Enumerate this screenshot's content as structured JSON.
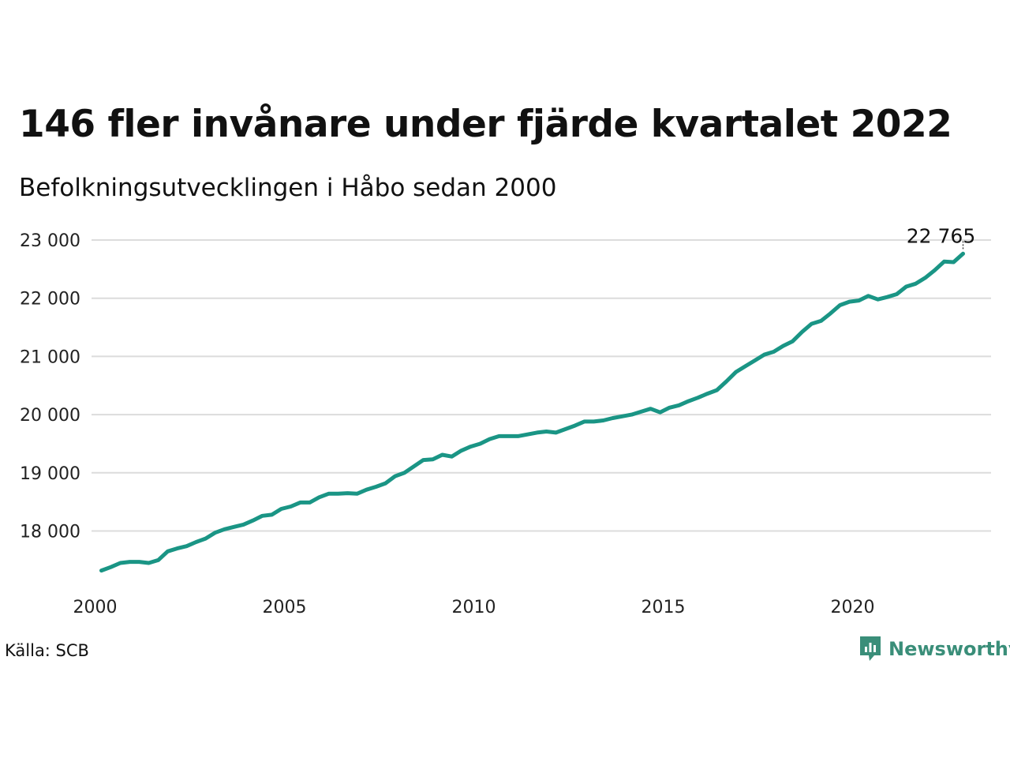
{
  "title": "146 fler invånare under fjärde kvartalet 2022",
  "subtitle": "Befolkningsutvecklingen i Håbo sedan 2000",
  "source": "Källa: SCB",
  "brand": {
    "name": "Newsworthy",
    "icon": "newsworthy-logo-icon",
    "color": "#3a8e79"
  },
  "colors": {
    "line": "#1a9585",
    "grid": "#dcdcdc"
  },
  "chart_data": {
    "type": "line",
    "title": "146 fler invånare under fjärde kvartalet 2022",
    "subtitle": "Befolkningsutvecklingen i Håbo sedan 2000",
    "xlabel": "",
    "ylabel": "",
    "xlim": [
      2000,
      2023
    ],
    "ylim": [
      17100,
      23200
    ],
    "x_ticks": [
      2000,
      2005,
      2010,
      2015,
      2020
    ],
    "y_ticks": [
      18000,
      19000,
      20000,
      21000,
      22000,
      23000
    ],
    "y_tick_labels": [
      "18 000",
      "19 000",
      "20 000",
      "21 000",
      "22 000",
      "23 000"
    ],
    "grid": true,
    "end_label": "22 765",
    "series": [
      {
        "values": [
          [
            2000.0,
            17320
          ],
          [
            2000.25,
            17380
          ],
          [
            2000.5,
            17450
          ],
          [
            2000.75,
            17470
          ],
          [
            2001.0,
            17470
          ],
          [
            2001.25,
            17450
          ],
          [
            2001.5,
            17500
          ],
          [
            2001.75,
            17650
          ],
          [
            2002.0,
            17700
          ],
          [
            2002.25,
            17740
          ],
          [
            2002.5,
            17810
          ],
          [
            2002.75,
            17870
          ],
          [
            2003.0,
            17970
          ],
          [
            2003.25,
            18030
          ],
          [
            2003.5,
            18070
          ],
          [
            2003.75,
            18110
          ],
          [
            2004.0,
            18180
          ],
          [
            2004.25,
            18260
          ],
          [
            2004.5,
            18280
          ],
          [
            2004.75,
            18380
          ],
          [
            2005.0,
            18420
          ],
          [
            2005.25,
            18490
          ],
          [
            2005.5,
            18490
          ],
          [
            2005.75,
            18580
          ],
          [
            2006.0,
            18640
          ],
          [
            2006.25,
            18640
          ],
          [
            2006.5,
            18650
          ],
          [
            2006.75,
            18640
          ],
          [
            2007.0,
            18710
          ],
          [
            2007.25,
            18760
          ],
          [
            2007.5,
            18820
          ],
          [
            2007.75,
            18940
          ],
          [
            2008.0,
            19000
          ],
          [
            2008.25,
            19110
          ],
          [
            2008.5,
            19220
          ],
          [
            2008.75,
            19230
          ],
          [
            2009.0,
            19310
          ],
          [
            2009.25,
            19280
          ],
          [
            2009.5,
            19380
          ],
          [
            2009.75,
            19450
          ],
          [
            2010.0,
            19500
          ],
          [
            2010.25,
            19580
          ],
          [
            2010.5,
            19630
          ],
          [
            2010.75,
            19630
          ],
          [
            2011.0,
            19630
          ],
          [
            2011.25,
            19660
          ],
          [
            2011.5,
            19690
          ],
          [
            2011.75,
            19710
          ],
          [
            2012.0,
            19690
          ],
          [
            2012.25,
            19750
          ],
          [
            2012.5,
            19810
          ],
          [
            2012.75,
            19880
          ],
          [
            2013.0,
            19880
          ],
          [
            2013.25,
            19900
          ],
          [
            2013.5,
            19940
          ],
          [
            2013.75,
            19970
          ],
          [
            2014.0,
            20000
          ],
          [
            2014.25,
            20050
          ],
          [
            2014.5,
            20100
          ],
          [
            2014.75,
            20040
          ],
          [
            2015.0,
            20120
          ],
          [
            2015.25,
            20160
          ],
          [
            2015.5,
            20230
          ],
          [
            2015.75,
            20290
          ],
          [
            2016.0,
            20360
          ],
          [
            2016.25,
            20420
          ],
          [
            2016.5,
            20570
          ],
          [
            2016.75,
            20730
          ],
          [
            2017.0,
            20830
          ],
          [
            2017.25,
            20930
          ],
          [
            2017.5,
            21030
          ],
          [
            2017.75,
            21080
          ],
          [
            2018.0,
            21180
          ],
          [
            2018.25,
            21260
          ],
          [
            2018.5,
            21420
          ],
          [
            2018.75,
            21560
          ],
          [
            2019.0,
            21610
          ],
          [
            2019.25,
            21740
          ],
          [
            2019.5,
            21880
          ],
          [
            2019.75,
            21940
          ],
          [
            2020.0,
            21960
          ],
          [
            2020.25,
            22040
          ],
          [
            2020.5,
            21980
          ],
          [
            2020.75,
            22020
          ],
          [
            2021.0,
            22070
          ],
          [
            2021.25,
            22200
          ],
          [
            2021.5,
            22250
          ],
          [
            2021.75,
            22350
          ],
          [
            2022.0,
            22480
          ],
          [
            2022.25,
            22630
          ],
          [
            2022.5,
            22620
          ],
          [
            2022.75,
            22765
          ]
        ]
      }
    ]
  }
}
